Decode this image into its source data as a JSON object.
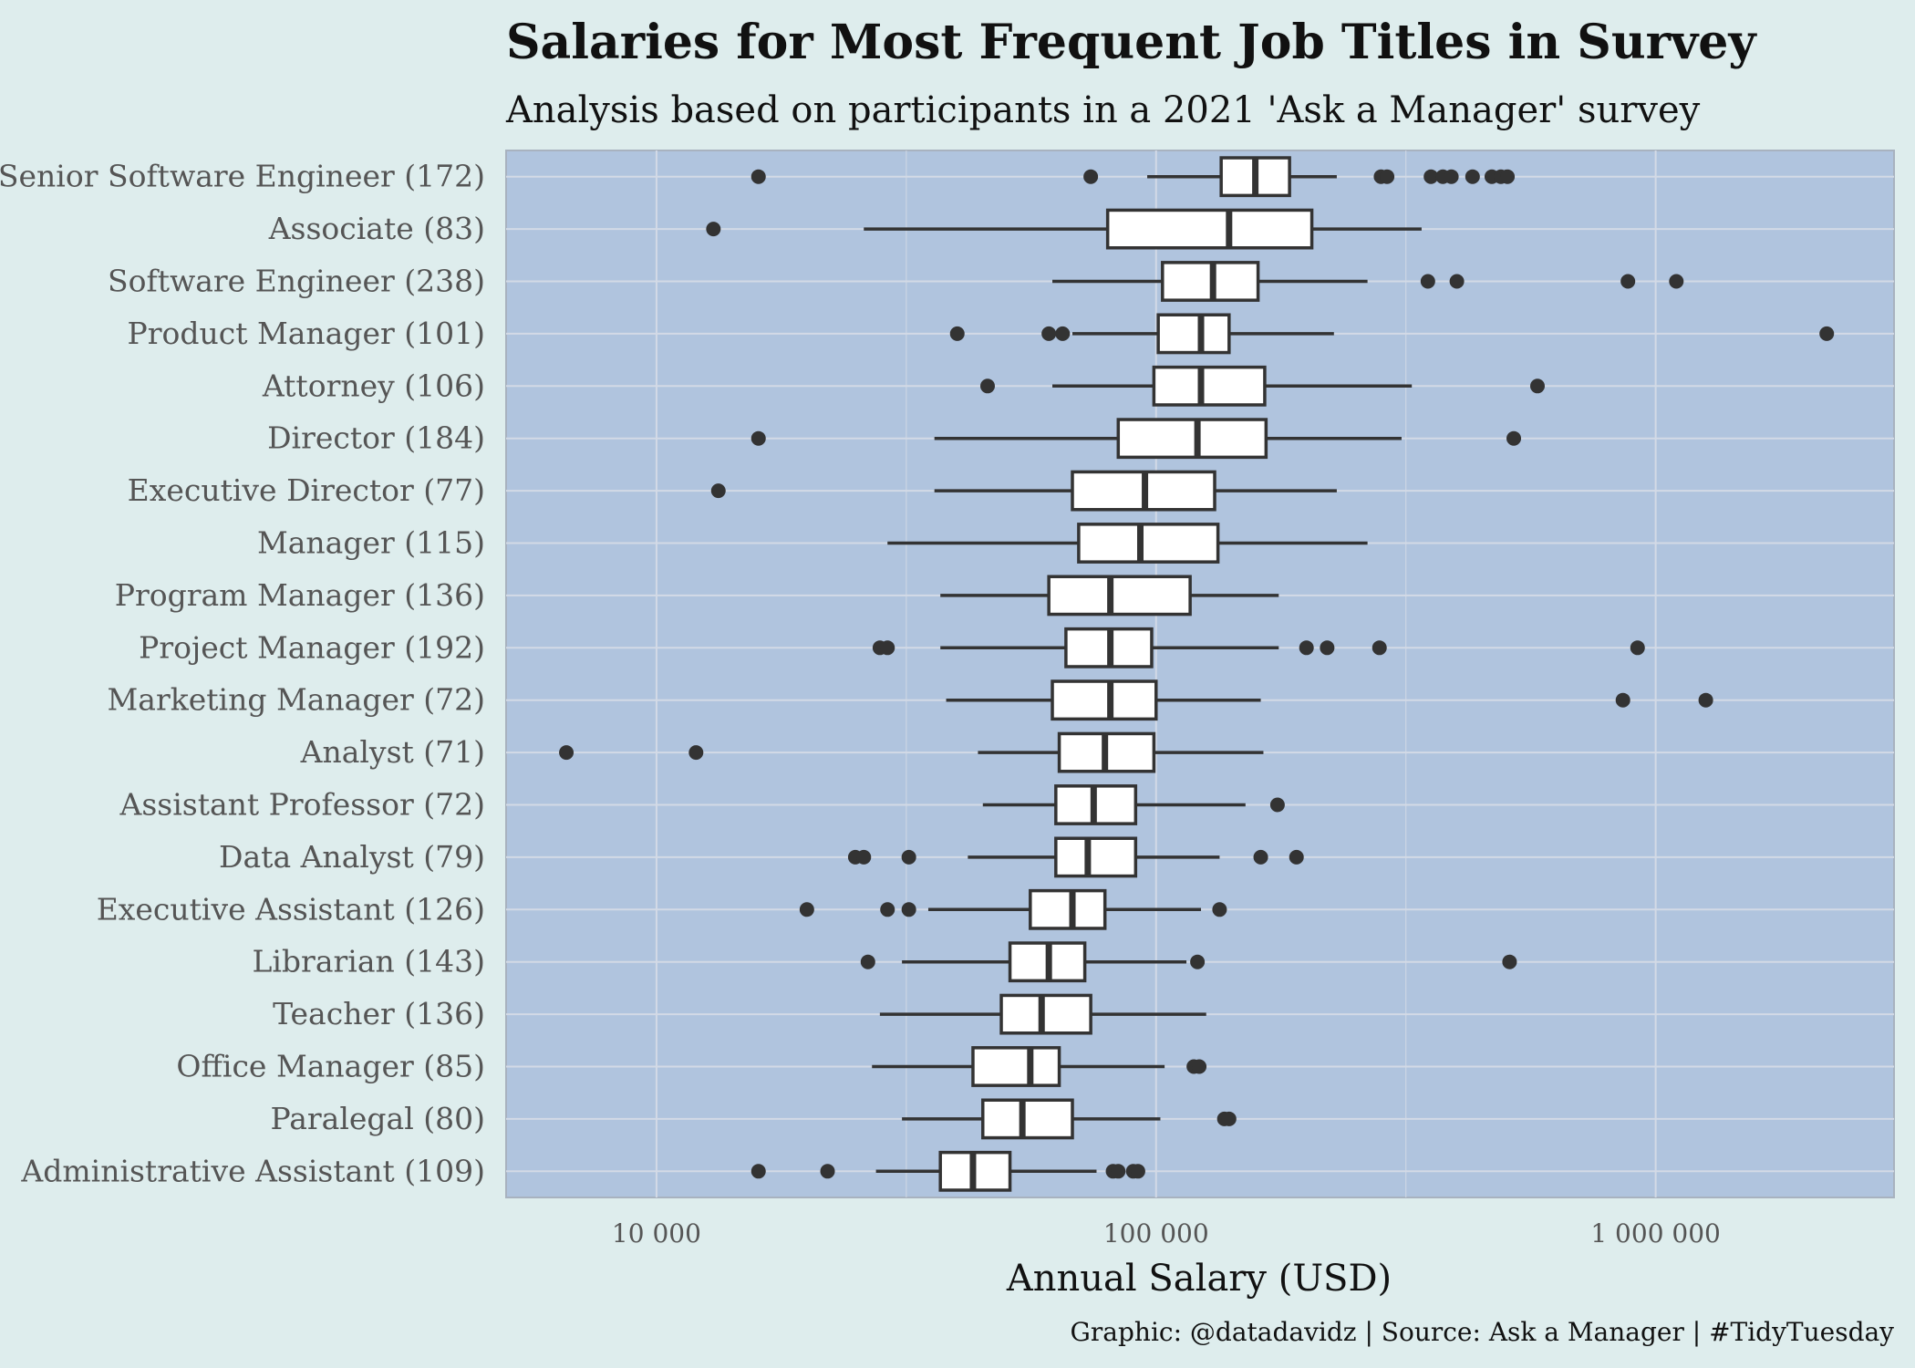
{
  "chart_data": {
    "type": "boxplot",
    "title": "Salaries for Most Frequent Job Titles in Survey",
    "subtitle": "Analysis based on participants in a 2021 'Ask a Manager' survey",
    "xlabel": "Annual Salary (USD)",
    "ylabel": "",
    "x_scale": "log10",
    "xlim": [
      5000,
      3000000
    ],
    "x_ticks": [
      10000,
      100000,
      1000000
    ],
    "x_tick_labels": [
      "10 000",
      "100 000",
      "1 000 000"
    ],
    "grid": true,
    "legend": "none",
    "caption": "Graphic: @datadavidz | Source: Ask a Manager | #TidyTuesday",
    "colors": {
      "background": "#deeded",
      "panel": "#b0c4de",
      "grid_major": "#d3dae6",
      "box_fill": "#ffffff",
      "stroke": "#333333"
    },
    "categories": [
      "Senior Software Engineer (172)",
      "Associate (83)",
      "Software Engineer (238)",
      "Product Manager (101)",
      "Attorney (106)",
      "Director (184)",
      "Executive Director (77)",
      "Manager (115)",
      "Program Manager (136)",
      "Project Manager (192)",
      "Marketing Manager (72)",
      "Analyst (71)",
      "Assistant Professor (72)",
      "Data Analyst (79)",
      "Executive Assistant (126)",
      "Librarian (143)",
      "Teacher (136)",
      "Office Manager (85)",
      "Paralegal (80)",
      "Administrative Assistant (109)"
    ],
    "boxes": [
      {
        "whisker_low": 96000,
        "q1": 135000,
        "median": 158000,
        "q3": 185000,
        "whisker_high": 230000,
        "outliers": [
          16000,
          74000,
          282000,
          290000,
          355000,
          375000,
          390000,
          430000,
          470000,
          490000,
          505000
        ]
      },
      {
        "whisker_low": 26000,
        "q1": 80000,
        "median": 140000,
        "q3": 205000,
        "whisker_high": 340000,
        "outliers": [
          13000
        ]
      },
      {
        "whisker_low": 62000,
        "q1": 103000,
        "median": 130000,
        "q3": 160000,
        "whisker_high": 265000,
        "outliers": [
          350000,
          400000,
          880000,
          1100000
        ]
      },
      {
        "whisker_low": 68000,
        "q1": 101000,
        "median": 123000,
        "q3": 140000,
        "whisker_high": 227000,
        "outliers": [
          40000,
          61000,
          65000,
          2200000
        ]
      },
      {
        "whisker_low": 62000,
        "q1": 99000,
        "median": 123000,
        "q3": 165000,
        "whisker_high": 325000,
        "outliers": [
          46000,
          580000
        ]
      },
      {
        "whisker_low": 36000,
        "q1": 84000,
        "median": 121000,
        "q3": 166000,
        "whisker_high": 310000,
        "outliers": [
          16000,
          520000
        ]
      },
      {
        "whisker_low": 36000,
        "q1": 68000,
        "median": 95000,
        "q3": 131000,
        "whisker_high": 230000,
        "outliers": [
          13300
        ]
      },
      {
        "whisker_low": 29000,
        "q1": 70000,
        "median": 93000,
        "q3": 133000,
        "whisker_high": 265000,
        "outliers": []
      },
      {
        "whisker_low": 37000,
        "q1": 61000,
        "median": 81000,
        "q3": 117000,
        "whisker_high": 176000,
        "outliers": []
      },
      {
        "whisker_low": 37000,
        "q1": 66000,
        "median": 81000,
        "q3": 98000,
        "whisker_high": 176000,
        "outliers": [
          28000,
          29000,
          200000,
          220000,
          280000,
          920000
        ]
      },
      {
        "whisker_low": 38000,
        "q1": 62000,
        "median": 81000,
        "q3": 100000,
        "whisker_high": 162000,
        "outliers": [
          860000,
          1260000
        ]
      },
      {
        "whisker_low": 44000,
        "q1": 64000,
        "median": 79000,
        "q3": 99000,
        "whisker_high": 164000,
        "outliers": [
          6600,
          12000
        ]
      },
      {
        "whisker_low": 45000,
        "q1": 63000,
        "median": 75000,
        "q3": 91000,
        "whisker_high": 151000,
        "outliers": [
          175000
        ]
      },
      {
        "whisker_low": 42000,
        "q1": 63000,
        "median": 73000,
        "q3": 91000,
        "whisker_high": 134000,
        "outliers": [
          25000,
          26000,
          32000,
          162000,
          191000
        ]
      },
      {
        "whisker_low": 35000,
        "q1": 56000,
        "median": 68000,
        "q3": 79000,
        "whisker_high": 123000,
        "outliers": [
          20000,
          29000,
          32000,
          134000
        ]
      },
      {
        "whisker_low": 31000,
        "q1": 51000,
        "median": 61000,
        "q3": 72000,
        "whisker_high": 115000,
        "outliers": [
          26500,
          121000,
          510000
        ]
      },
      {
        "whisker_low": 28000,
        "q1": 49000,
        "median": 59000,
        "q3": 74000,
        "whisker_high": 126000,
        "outliers": []
      },
      {
        "whisker_low": 27000,
        "q1": 43000,
        "median": 56000,
        "q3": 64000,
        "whisker_high": 104000,
        "outliers": [
          119000,
          122000
        ]
      },
      {
        "whisker_low": 31000,
        "q1": 45000,
        "median": 54000,
        "q3": 68000,
        "whisker_high": 102000,
        "outliers": [
          137000,
          140000
        ]
      },
      {
        "whisker_low": 27500,
        "q1": 37000,
        "median": 43000,
        "q3": 51000,
        "whisker_high": 76000,
        "outliers": [
          16000,
          22000,
          82000,
          84000,
          90000,
          92000
        ]
      }
    ]
  }
}
